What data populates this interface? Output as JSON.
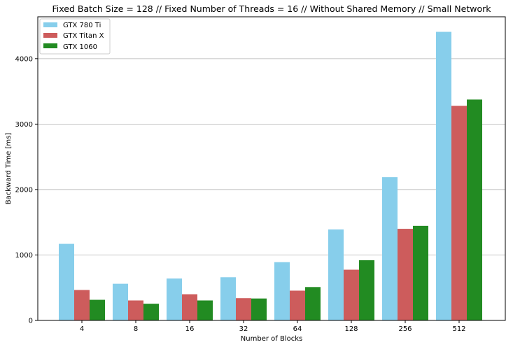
{
  "chart_data": {
    "type": "bar",
    "title": "Fixed Batch Size = 128 // Fixed Number of Threads = 16 // Without Shared Memory // Small Network",
    "xlabel": "Number of Blocks",
    "ylabel": "Backward Time [ms]",
    "categories": [
      "4",
      "8",
      "16",
      "32",
      "64",
      "128",
      "256",
      "512"
    ],
    "ylim": [
      0,
      4640
    ],
    "yticks": [
      0,
      1000,
      2000,
      3000,
      4000
    ],
    "grid": "y",
    "legend_position": "top-left",
    "series": [
      {
        "name": "GTX 780 Ti",
        "color": "#87ceeb",
        "values": [
          1170,
          560,
          640,
          660,
          890,
          1390,
          2190,
          4410
        ]
      },
      {
        "name": "GTX Titan X",
        "color": "#cd5c5c",
        "values": [
          465,
          305,
          400,
          340,
          455,
          775,
          1400,
          3280
        ]
      },
      {
        "name": "GTX 1060",
        "color": "#228b22",
        "values": [
          315,
          255,
          305,
          335,
          510,
          920,
          1445,
          3375
        ]
      }
    ]
  }
}
